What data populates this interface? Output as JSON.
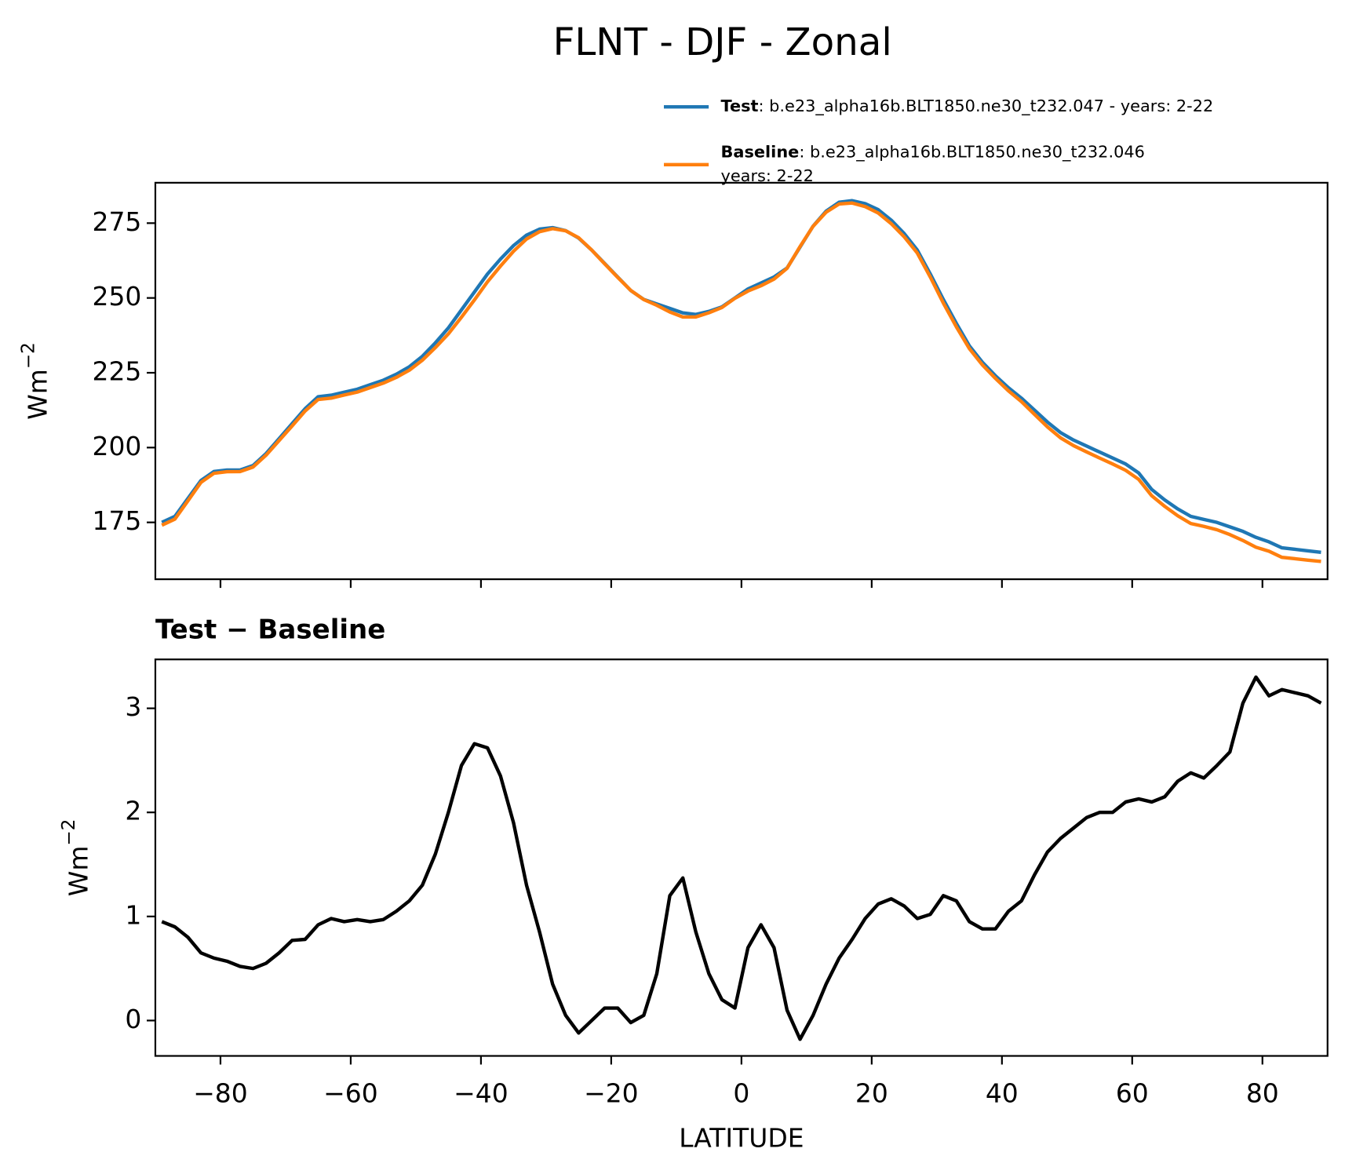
{
  "title": "FLNT - DJF - Zonal",
  "chart_data": [
    {
      "type": "line",
      "ylabel": {
        "base": "Wm",
        "sup": "−2"
      },
      "x": [
        -89,
        -87,
        -85,
        -83,
        -81,
        -79,
        -77,
        -75,
        -73,
        -71,
        -69,
        -67,
        -65,
        -63,
        -61,
        -59,
        -57,
        -55,
        -53,
        -51,
        -49,
        -47,
        -45,
        -43,
        -41,
        -39,
        -37,
        -35,
        -33,
        -31,
        -29,
        -27,
        -25,
        -23,
        -21,
        -19,
        -17,
        -15,
        -13,
        -11,
        -9,
        -7,
        -5,
        -3,
        -1,
        1,
        3,
        5,
        7,
        9,
        11,
        13,
        15,
        17,
        19,
        21,
        23,
        25,
        27,
        29,
        31,
        33,
        35,
        37,
        39,
        41,
        43,
        45,
        47,
        49,
        51,
        53,
        55,
        57,
        59,
        61,
        63,
        65,
        67,
        69,
        71,
        73,
        75,
        77,
        79,
        81,
        83,
        85,
        87,
        89
      ],
      "xlim": [
        -90,
        90
      ],
      "xticks": [
        -80,
        -60,
        -40,
        -20,
        0,
        20,
        40,
        60,
        80
      ],
      "ylim": [
        156,
        288.5
      ],
      "yticks": [
        175,
        200,
        225,
        250,
        275
      ],
      "series": [
        {
          "name": "Test",
          "description": [
            ": b.e23_alpha16b.BLT1850.ne30_t232.047 - years: 2-22"
          ],
          "color": "#1f77b4",
          "values": [
            175,
            177,
            183,
            189,
            192,
            192.5,
            192.5,
            194,
            198,
            203,
            208,
            213,
            217,
            217.5,
            218.5,
            219.5,
            221,
            222.5,
            224.5,
            227,
            230.5,
            235,
            240,
            246,
            252,
            258,
            263,
            267.5,
            271,
            273,
            273.5,
            272.5,
            270,
            266,
            261.5,
            257,
            252.5,
            249.5,
            248,
            246.5,
            245,
            244.5,
            245.5,
            247,
            250,
            253,
            255,
            257,
            260,
            267,
            274,
            279,
            282,
            282.5,
            281.5,
            279.5,
            276,
            271.5,
            266,
            258,
            249.5,
            241.5,
            234,
            228.5,
            224,
            220,
            216.5,
            212.5,
            208.5,
            205,
            202.5,
            200.5,
            198.5,
            196.5,
            194.5,
            191.5,
            186,
            182.5,
            179.5,
            177,
            176,
            175,
            173.5,
            172,
            170,
            168.5,
            166.5,
            166,
            165.5,
            165
          ]
        },
        {
          "name": "Baseline",
          "description": [
            ": b.e23_alpha16b.BLT1850.ne30_t232.046",
            "years: 2-22"
          ],
          "color": "#ff7f0e",
          "values": [
            174.05,
            176.1,
            182.2,
            188.35,
            191.4,
            191.93,
            191.98,
            193.5,
            197.45,
            202.35,
            207.23,
            212.22,
            216.08,
            216.52,
            217.55,
            218.53,
            220.05,
            221.53,
            223.45,
            225.85,
            229.2,
            233.4,
            238,
            243.55,
            249.34,
            255.38,
            260.65,
            265.6,
            269.7,
            272.15,
            273.15,
            272.45,
            270.12,
            266,
            261.38,
            256.88,
            252.52,
            249.45,
            247.55,
            245.3,
            243.63,
            243.65,
            245.05,
            246.8,
            249.88,
            252.3,
            254.08,
            256.3,
            259.9,
            267.18,
            273.95,
            278.65,
            281.4,
            281.72,
            280.52,
            278.38,
            274.83,
            270.4,
            265.02,
            256.98,
            248.3,
            240.35,
            233.05,
            227.62,
            223.12,
            218.95,
            215.35,
            211.1,
            206.88,
            203.25,
            200.65,
            198.55,
            196.5,
            194.5,
            192.4,
            189.37,
            183.9,
            180.35,
            177.2,
            174.62,
            173.67,
            172.55,
            170.92,
            168.95,
            166.7,
            165.38,
            163.32,
            162.85,
            162.38,
            161.95
          ]
        }
      ]
    },
    {
      "type": "line",
      "title": "Test − Baseline",
      "xlabel": "LATITUDE",
      "ylabel": {
        "base": "Wm",
        "sup": "−2"
      },
      "x": [
        -89,
        -87,
        -85,
        -83,
        -81,
        -79,
        -77,
        -75,
        -73,
        -71,
        -69,
        -67,
        -65,
        -63,
        -61,
        -59,
        -57,
        -55,
        -53,
        -51,
        -49,
        -47,
        -45,
        -43,
        -41,
        -39,
        -37,
        -35,
        -33,
        -31,
        -29,
        -27,
        -25,
        -23,
        -21,
        -19,
        -17,
        -15,
        -13,
        -11,
        -9,
        -7,
        -5,
        -3,
        -1,
        1,
        3,
        5,
        7,
        9,
        11,
        13,
        15,
        17,
        19,
        21,
        23,
        25,
        27,
        29,
        31,
        33,
        35,
        37,
        39,
        41,
        43,
        45,
        47,
        49,
        51,
        53,
        55,
        57,
        59,
        61,
        63,
        65,
        67,
        69,
        71,
        73,
        75,
        77,
        79,
        81,
        83,
        85,
        87,
        89
      ],
      "xlim": [
        -90,
        90
      ],
      "xticks": [
        {
          "value": -80,
          "label": "−80"
        },
        {
          "value": -60,
          "label": "−60"
        },
        {
          "value": -40,
          "label": "−40"
        },
        {
          "value": -20,
          "label": "−20"
        },
        0,
        20,
        40,
        60,
        80
      ],
      "ylim": [
        -0.34,
        3.47
      ],
      "yticks": [
        0,
        1,
        2,
        3
      ],
      "series": [
        {
          "color": "#000000",
          "values": [
            0.95,
            0.9,
            0.8,
            0.65,
            0.6,
            0.57,
            0.52,
            0.5,
            0.55,
            0.65,
            0.77,
            0.78,
            0.92,
            0.98,
            0.95,
            0.97,
            0.95,
            0.97,
            1.05,
            1.15,
            1.3,
            1.6,
            2.0,
            2.45,
            2.66,
            2.62,
            2.35,
            1.9,
            1.3,
            0.85,
            0.35,
            0.05,
            -0.12,
            0.0,
            0.12,
            0.12,
            -0.02,
            0.05,
            0.45,
            1.2,
            1.37,
            0.85,
            0.45,
            0.2,
            0.12,
            0.7,
            0.92,
            0.7,
            0.1,
            -0.18,
            0.05,
            0.35,
            0.6,
            0.78,
            0.98,
            1.12,
            1.17,
            1.1,
            0.98,
            1.02,
            1.2,
            1.15,
            0.95,
            0.88,
            0.88,
            1.05,
            1.15,
            1.4,
            1.62,
            1.75,
            1.85,
            1.95,
            2.0,
            2.0,
            2.1,
            2.13,
            2.1,
            2.15,
            2.3,
            2.38,
            2.33,
            2.45,
            2.58,
            3.05,
            3.3,
            3.12,
            3.18,
            3.15,
            3.12,
            3.05
          ]
        }
      ]
    }
  ]
}
